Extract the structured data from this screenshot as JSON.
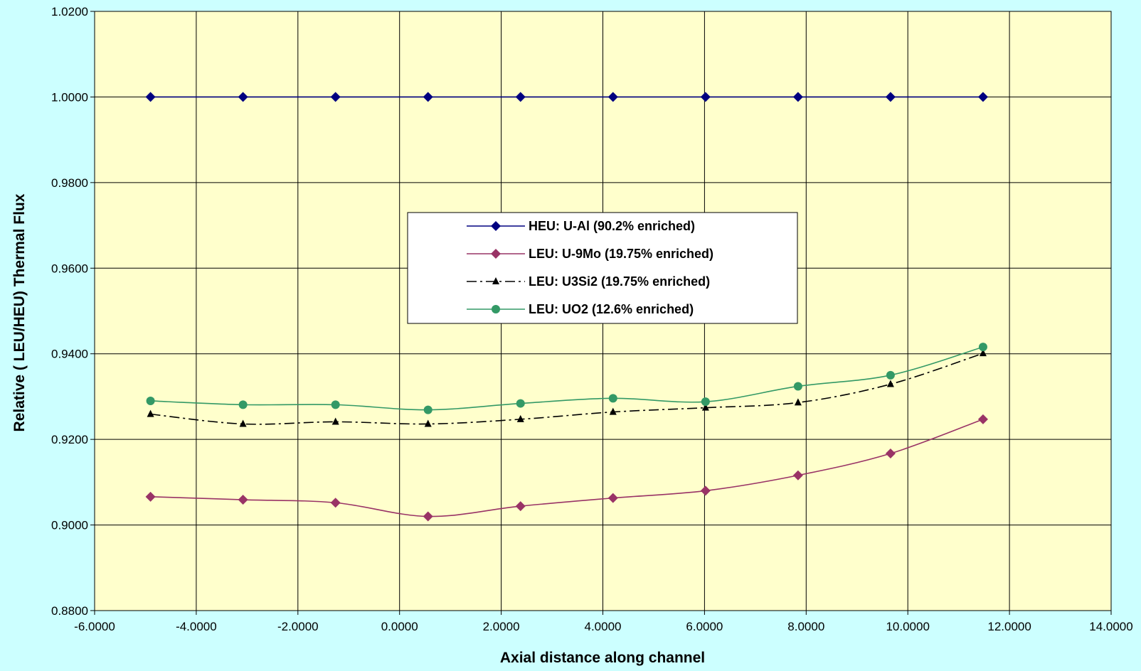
{
  "chart_data": {
    "type": "line",
    "title": "",
    "xlabel": "Axial distance along channel",
    "ylabel": "Relative ( LEU/HEU) Thermal Flux",
    "xlim": [
      -6,
      14
    ],
    "ylim": [
      0.88,
      1.02
    ],
    "x_ticks": [
      -6,
      -4,
      -2,
      0,
      2,
      4,
      6,
      8,
      10,
      12,
      14
    ],
    "y_ticks": [
      0.88,
      0.9,
      0.92,
      0.94,
      0.96,
      0.98,
      1.0,
      1.02
    ],
    "x_tick_labels": [
      "-6.0000",
      "-4.0000",
      "-2.0000",
      "0.0000",
      "2.0000",
      "4.0000",
      "6.0000",
      "8.0000",
      "10.0000",
      "12.0000",
      "14.0000"
    ],
    "y_tick_labels": [
      "0.8800",
      "0.9000",
      "0.9200",
      "0.9400",
      "0.9600",
      "0.9800",
      "1.0000",
      "1.0200"
    ],
    "grid": true,
    "legend_position": "center",
    "plot_background": "#ffffcc",
    "page_background": "#ccffff",
    "x": [
      -4.9,
      -3.08,
      -1.26,
      0.56,
      2.38,
      4.2,
      6.02,
      7.84,
      9.66,
      11.48
    ],
    "series": [
      {
        "name": "HEU: U-Al (90.2% enriched)",
        "color": "#000080",
        "marker": "diamond",
        "line_style": "solid",
        "values": [
          1.0,
          1.0,
          1.0,
          1.0,
          1.0,
          1.0,
          1.0,
          1.0,
          1.0,
          1.0
        ]
      },
      {
        "name": "LEU: U-9Mo (19.75% enriched)",
        "color": "#993366",
        "marker": "diamond",
        "line_style": "solid",
        "values": [
          0.9066,
          0.9059,
          0.9052,
          0.902,
          0.9044,
          0.9063,
          0.908,
          0.9116,
          0.9167,
          0.9247
        ]
      },
      {
        "name": "LEU: U3Si2 (19.75% enriched)",
        "color": "#000000",
        "marker": "triangle",
        "line_style": "dashdot",
        "values": [
          0.9259,
          0.9236,
          0.9241,
          0.9236,
          0.9247,
          0.9264,
          0.9274,
          0.9286,
          0.9329,
          0.9401
        ]
      },
      {
        "name": "LEU: UO2 (12.6% enriched)",
        "color": "#339966",
        "marker": "circle",
        "line_style": "solid",
        "values": [
          0.929,
          0.9281,
          0.9281,
          0.9269,
          0.9284,
          0.9296,
          0.9288,
          0.9324,
          0.935,
          0.9416
        ]
      }
    ]
  }
}
